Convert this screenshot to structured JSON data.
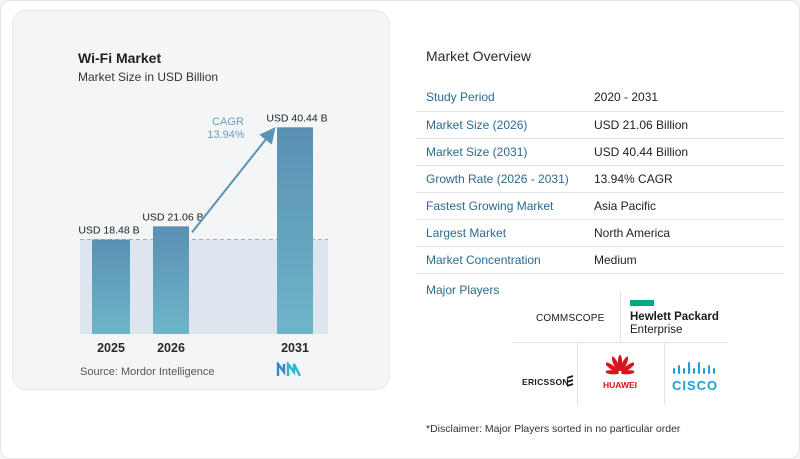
{
  "title": "Wi-Fi Market",
  "subtitle": "Market Size in USD Billion",
  "source": "Source:  Mordor Intelligence",
  "cagr_label": "CAGR",
  "cagr_value": "13.94%",
  "chart_data": {
    "type": "bar",
    "categories": [
      "2025",
      "2026",
      "2031"
    ],
    "values": [
      18.48,
      21.06,
      40.44
    ],
    "data_labels": [
      "USD 18.48 B",
      "USD 21.06 B",
      "USD 40.44 B"
    ],
    "ylim": [
      0,
      45
    ],
    "bar_color": "#5b93b6",
    "highlight_color": "#dde6ee"
  },
  "overview": {
    "title": "Market Overview",
    "rows": [
      {
        "key": "Study Period",
        "value": "2020 - 2031"
      },
      {
        "key": "Market Size (2026)",
        "value": "USD 21.06 Billion"
      },
      {
        "key": "Market Size (2031)",
        "value": "USD 40.44 Billion"
      },
      {
        "key": "Growth Rate (2026 - 2031)",
        "value": "13.94% CAGR"
      },
      {
        "key": "Fastest Growing Market",
        "value": "Asia Pacific"
      },
      {
        "key": "Largest Market",
        "value": "North America"
      },
      {
        "key": "Market Concentration",
        "value": "Medium"
      }
    ]
  },
  "players": {
    "title": "Major Players",
    "names": [
      "COMMSCOPE",
      "Hewlett Packard",
      "Enterprise",
      "ERICSSON",
      "HUAWEI",
      "CISCO"
    ]
  },
  "disclaimer": "*Disclaimer: Major Players sorted in no particular order"
}
